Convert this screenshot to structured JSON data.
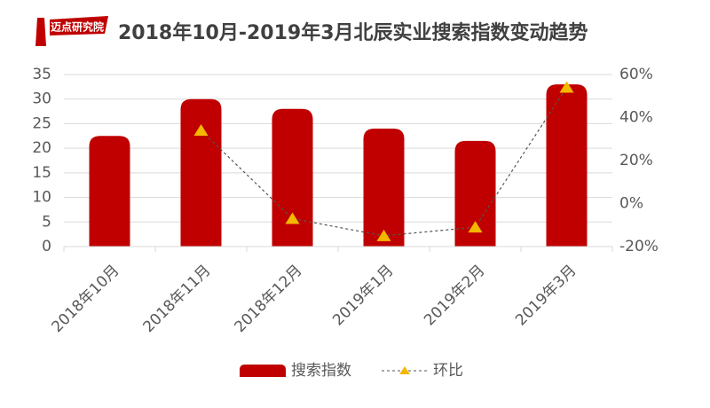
{
  "logo": "迈点研究院",
  "chart_data": {
    "type": "bar_line",
    "title": "2018年10月-2019年3月北辰实业搜索指数变动趋势",
    "categories": [
      "2018年10月",
      "2018年11月",
      "2018年12月",
      "2019年1月",
      "2019年2月",
      "2019年3月"
    ],
    "series": [
      {
        "name": "搜索指数",
        "type": "bar",
        "color": "#c00000",
        "values": [
          22.5,
          30,
          28,
          24,
          21.5,
          33
        ]
      },
      {
        "name": "环比",
        "type": "line",
        "axis": "y2",
        "color": "#f5b800",
        "line_color": "#555555",
        "values": [
          null,
          34,
          -7,
          -15,
          -11,
          54
        ]
      }
    ],
    "ylim": [
      0,
      35
    ],
    "yticks": [
      0,
      5,
      10,
      15,
      20,
      25,
      30,
      35
    ],
    "y2lim": [
      -20,
      60
    ],
    "y2ticks": [
      {
        "value": -20,
        "label": "-20%"
      },
      {
        "value": 0,
        "label": "0%"
      },
      {
        "value": 20,
        "label": "20%"
      },
      {
        "value": 40,
        "label": "40%"
      },
      {
        "value": 60,
        "label": "60%"
      }
    ],
    "grid": true,
    "legend": "bottom"
  }
}
